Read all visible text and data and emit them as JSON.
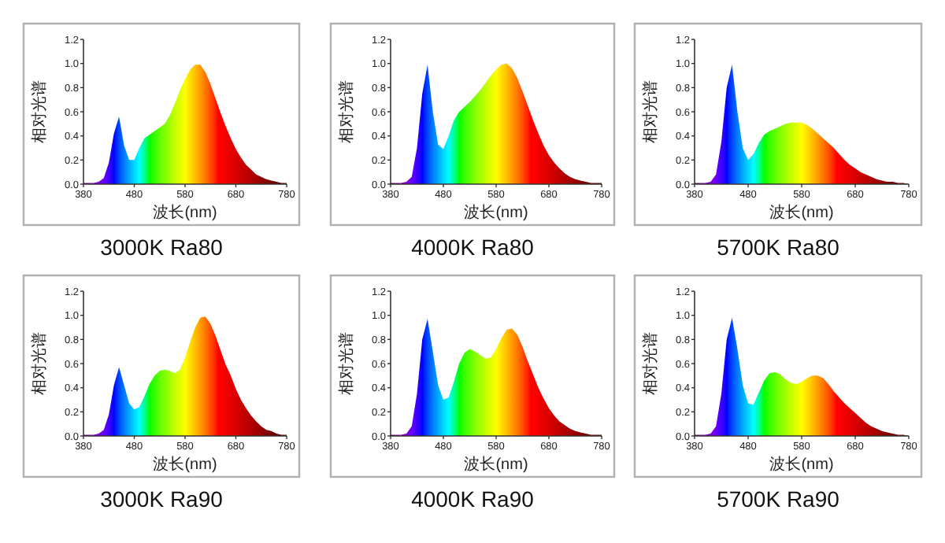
{
  "chart_data": [
    {
      "type": "area",
      "title": "3000K  Ra80",
      "xlabel": "波长(nm)",
      "ylabel": "相对光谱",
      "x": [
        380,
        390,
        400,
        410,
        420,
        430,
        440,
        450,
        460,
        470,
        480,
        490,
        500,
        510,
        520,
        530,
        540,
        550,
        560,
        570,
        580,
        590,
        600,
        610,
        620,
        630,
        640,
        650,
        660,
        670,
        680,
        690,
        700,
        710,
        720,
        730,
        740,
        750,
        760,
        770,
        780
      ],
      "xlim": [
        380,
        780
      ],
      "xticks": [
        380,
        480,
        580,
        680,
        780
      ],
      "ylim": [
        0,
        1.2
      ],
      "yticks": [
        {
          "value": 0,
          "label": "0.0"
        },
        {
          "value": 0.2,
          "label": "0.2"
        },
        {
          "value": 0.4,
          "label": "0.4"
        },
        {
          "value": 0.6,
          "label": "0.6"
        },
        {
          "value": 0.8,
          "label": "0.8"
        },
        {
          "value": 1,
          "label": "1.0"
        },
        {
          "value": 1.2,
          "label": "1.2"
        }
      ],
      "values": [
        0.01,
        0.01,
        0.01,
        0.02,
        0.05,
        0.18,
        0.42,
        0.56,
        0.32,
        0.2,
        0.2,
        0.3,
        0.38,
        0.41,
        0.44,
        0.47,
        0.5,
        0.57,
        0.67,
        0.78,
        0.87,
        0.95,
        0.99,
        0.99,
        0.93,
        0.83,
        0.71,
        0.59,
        0.48,
        0.38,
        0.29,
        0.22,
        0.16,
        0.12,
        0.08,
        0.06,
        0.04,
        0.03,
        0.02,
        0.01,
        0.01
      ]
    },
    {
      "type": "area",
      "title": "4000K  Ra80",
      "xlabel": "波长(nm)",
      "ylabel": "相对光谱",
      "x": [
        380,
        390,
        400,
        410,
        420,
        430,
        440,
        450,
        460,
        470,
        480,
        490,
        500,
        510,
        520,
        530,
        540,
        550,
        560,
        570,
        580,
        590,
        600,
        610,
        620,
        630,
        640,
        650,
        660,
        670,
        680,
        690,
        700,
        710,
        720,
        730,
        740,
        750,
        760,
        770,
        780
      ],
      "xlim": [
        380,
        780
      ],
      "xticks": [
        380,
        480,
        580,
        680,
        780
      ],
      "ylim": [
        0,
        1.2
      ],
      "yticks": [
        {
          "value": 0,
          "label": "0.0"
        },
        {
          "value": 0.2,
          "label": "0.2"
        },
        {
          "value": 0.4,
          "label": "0.4"
        },
        {
          "value": 0.6,
          "label": "0.6"
        },
        {
          "value": 0.8,
          "label": "0.8"
        },
        {
          "value": 1,
          "label": "1.0"
        },
        {
          "value": 1.2,
          "label": "1.2"
        }
      ],
      "values": [
        0.01,
        0.01,
        0.01,
        0.02,
        0.06,
        0.3,
        0.75,
        0.99,
        0.6,
        0.33,
        0.29,
        0.4,
        0.53,
        0.6,
        0.64,
        0.68,
        0.73,
        0.78,
        0.84,
        0.9,
        0.95,
        0.99,
        1.0,
        0.96,
        0.88,
        0.77,
        0.65,
        0.53,
        0.42,
        0.32,
        0.24,
        0.18,
        0.13,
        0.09,
        0.06,
        0.04,
        0.03,
        0.02,
        0.01,
        0.01,
        0.01
      ]
    },
    {
      "type": "area",
      "title": "5700K  Ra80",
      "xlabel": "波长(nm)",
      "ylabel": "相对光谱",
      "x": [
        380,
        390,
        400,
        410,
        420,
        430,
        440,
        450,
        460,
        470,
        480,
        490,
        500,
        510,
        520,
        530,
        540,
        550,
        560,
        570,
        580,
        590,
        600,
        610,
        620,
        630,
        640,
        650,
        660,
        670,
        680,
        690,
        700,
        710,
        720,
        730,
        740,
        750,
        760,
        770,
        780
      ],
      "xlim": [
        380,
        780
      ],
      "xticks": [
        380,
        480,
        580,
        680,
        780
      ],
      "ylim": [
        0,
        1.2
      ],
      "yticks": [
        {
          "value": 0,
          "label": "0.0"
        },
        {
          "value": 0.2,
          "label": "0.2"
        },
        {
          "value": 0.4,
          "label": "0.4"
        },
        {
          "value": 0.6,
          "label": "0.6"
        },
        {
          "value": 0.8,
          "label": "0.8"
        },
        {
          "value": 1,
          "label": "1.0"
        },
        {
          "value": 1.2,
          "label": "1.2"
        }
      ],
      "values": [
        0.01,
        0.01,
        0.01,
        0.02,
        0.08,
        0.35,
        0.8,
        0.99,
        0.6,
        0.3,
        0.2,
        0.25,
        0.34,
        0.41,
        0.44,
        0.46,
        0.48,
        0.5,
        0.51,
        0.51,
        0.51,
        0.49,
        0.46,
        0.42,
        0.38,
        0.34,
        0.3,
        0.25,
        0.2,
        0.16,
        0.13,
        0.1,
        0.08,
        0.06,
        0.04,
        0.03,
        0.02,
        0.02,
        0.01,
        0.01,
        0.0
      ]
    },
    {
      "type": "area",
      "title": "3000K  Ra90",
      "xlabel": "波长(nm)",
      "ylabel": "相对光谱",
      "x": [
        380,
        390,
        400,
        410,
        420,
        430,
        440,
        450,
        460,
        470,
        480,
        490,
        500,
        510,
        520,
        530,
        540,
        550,
        560,
        570,
        580,
        590,
        600,
        610,
        620,
        630,
        640,
        650,
        660,
        670,
        680,
        690,
        700,
        710,
        720,
        730,
        740,
        750,
        760,
        770,
        780
      ],
      "xlim": [
        380,
        780
      ],
      "xticks": [
        380,
        480,
        580,
        680,
        780
      ],
      "ylim": [
        0,
        1.2
      ],
      "yticks": [
        {
          "value": 0,
          "label": "0.0"
        },
        {
          "value": 0.2,
          "label": "0.2"
        },
        {
          "value": 0.4,
          "label": "0.4"
        },
        {
          "value": 0.6,
          "label": "0.6"
        },
        {
          "value": 0.8,
          "label": "0.8"
        },
        {
          "value": 1,
          "label": "1.0"
        },
        {
          "value": 1.2,
          "label": "1.2"
        }
      ],
      "values": [
        0.01,
        0.01,
        0.01,
        0.02,
        0.05,
        0.18,
        0.42,
        0.57,
        0.42,
        0.27,
        0.22,
        0.24,
        0.33,
        0.43,
        0.5,
        0.54,
        0.55,
        0.54,
        0.52,
        0.55,
        0.65,
        0.78,
        0.9,
        0.98,
        0.99,
        0.93,
        0.83,
        0.71,
        0.59,
        0.5,
        0.39,
        0.3,
        0.23,
        0.17,
        0.12,
        0.08,
        0.05,
        0.04,
        0.02,
        0.01,
        0.01
      ]
    },
    {
      "type": "area",
      "title": "4000K  Ra90",
      "xlabel": "波长(nm)",
      "ylabel": "相对光谱",
      "x": [
        380,
        390,
        400,
        410,
        420,
        430,
        440,
        450,
        460,
        470,
        480,
        490,
        500,
        510,
        520,
        530,
        540,
        550,
        560,
        570,
        580,
        590,
        600,
        610,
        620,
        630,
        640,
        650,
        660,
        670,
        680,
        690,
        700,
        710,
        720,
        730,
        740,
        750,
        760,
        770,
        780
      ],
      "xlim": [
        380,
        780
      ],
      "xticks": [
        380,
        480,
        580,
        680,
        780
      ],
      "ylim": [
        0,
        1.2
      ],
      "yticks": [
        {
          "value": 0,
          "label": "0.0"
        },
        {
          "value": 0.2,
          "label": "0.2"
        },
        {
          "value": 0.4,
          "label": "0.4"
        },
        {
          "value": 0.6,
          "label": "0.6"
        },
        {
          "value": 0.8,
          "label": "0.8"
        },
        {
          "value": 1,
          "label": "1.0"
        },
        {
          "value": 1.2,
          "label": "1.2"
        }
      ],
      "values": [
        0.01,
        0.01,
        0.01,
        0.02,
        0.08,
        0.35,
        0.8,
        0.97,
        0.7,
        0.42,
        0.3,
        0.32,
        0.45,
        0.6,
        0.69,
        0.72,
        0.7,
        0.67,
        0.64,
        0.65,
        0.72,
        0.81,
        0.88,
        0.89,
        0.84,
        0.74,
        0.62,
        0.51,
        0.4,
        0.31,
        0.23,
        0.17,
        0.12,
        0.09,
        0.06,
        0.04,
        0.03,
        0.02,
        0.01,
        0.01,
        0.01
      ]
    },
    {
      "type": "area",
      "title": "5700K  Ra90",
      "xlabel": "波长(nm)",
      "ylabel": "相对光谱",
      "x": [
        380,
        390,
        400,
        410,
        420,
        430,
        440,
        450,
        460,
        470,
        480,
        490,
        500,
        510,
        520,
        530,
        540,
        550,
        560,
        570,
        580,
        590,
        600,
        610,
        620,
        630,
        640,
        650,
        660,
        670,
        680,
        690,
        700,
        710,
        720,
        730,
        740,
        750,
        760,
        770,
        780
      ],
      "xlim": [
        380,
        780
      ],
      "xticks": [
        380,
        480,
        580,
        680,
        780
      ],
      "ylim": [
        0,
        1.2
      ],
      "yticks": [
        {
          "value": 0,
          "label": "0.0"
        },
        {
          "value": 0.2,
          "label": "0.2"
        },
        {
          "value": 0.4,
          "label": "0.4"
        },
        {
          "value": 0.6,
          "label": "0.6"
        },
        {
          "value": 0.8,
          "label": "0.8"
        },
        {
          "value": 1,
          "label": "1.0"
        },
        {
          "value": 1.2,
          "label": "1.2"
        }
      ],
      "values": [
        0.01,
        0.01,
        0.01,
        0.02,
        0.08,
        0.35,
        0.8,
        0.98,
        0.72,
        0.42,
        0.27,
        0.26,
        0.36,
        0.46,
        0.52,
        0.53,
        0.51,
        0.47,
        0.44,
        0.43,
        0.45,
        0.48,
        0.5,
        0.5,
        0.48,
        0.43,
        0.37,
        0.32,
        0.27,
        0.23,
        0.19,
        0.15,
        0.11,
        0.08,
        0.06,
        0.04,
        0.03,
        0.02,
        0.01,
        0.01,
        0.0
      ]
    }
  ]
}
